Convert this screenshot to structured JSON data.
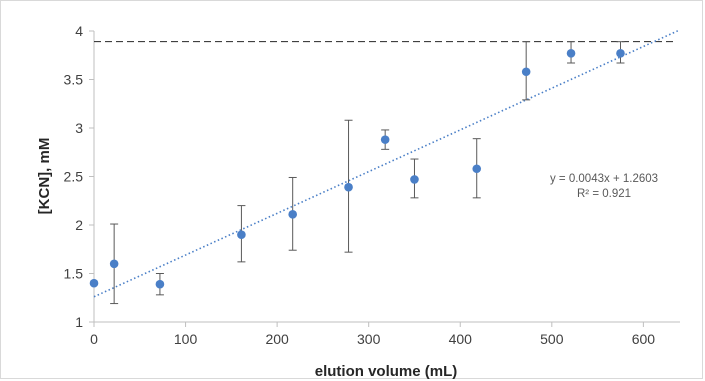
{
  "chart_data": {
    "type": "scatter",
    "title": "",
    "xlabel": "elution volume (mL)",
    "ylabel": "[KCN], mM",
    "xlim": [
      0,
      640
    ],
    "ylim": [
      1,
      4
    ],
    "x_ticks": [
      0,
      100,
      200,
      300,
      400,
      500,
      600
    ],
    "y_ticks": [
      1,
      1.5,
      2,
      2.5,
      3,
      3.5,
      4
    ],
    "x_tick_labels": [
      "0",
      "100",
      "200",
      "300",
      "400",
      "500",
      "600"
    ],
    "y_tick_labels": [
      "1",
      "1.5",
      "2",
      "2.5",
      "3",
      "3.5",
      "4"
    ],
    "grid": false,
    "legend": "none",
    "series": [
      {
        "points": [
          {
            "x": 0,
            "y": 1.4,
            "err_low": 1.4,
            "err_high": 1.4
          },
          {
            "x": 22,
            "y": 1.6,
            "err_low": 1.19,
            "err_high": 2.01
          },
          {
            "x": 72,
            "y": 1.39,
            "err_low": 1.28,
            "err_high": 1.5
          },
          {
            "x": 161,
            "y": 1.9,
            "err_low": 1.62,
            "err_high": 2.2
          },
          {
            "x": 217,
            "y": 2.11,
            "err_low": 1.74,
            "err_high": 2.49
          },
          {
            "x": 278,
            "y": 2.39,
            "err_low": 1.72,
            "err_high": 3.08
          },
          {
            "x": 318,
            "y": 2.88,
            "err_low": 2.78,
            "err_high": 2.98
          },
          {
            "x": 350,
            "y": 2.47,
            "err_low": 2.28,
            "err_high": 2.68
          },
          {
            "x": 418,
            "y": 2.58,
            "err_low": 2.28,
            "err_high": 2.89
          },
          {
            "x": 472,
            "y": 3.58,
            "err_low": 3.29,
            "err_high": 3.89
          },
          {
            "x": 521,
            "y": 3.77,
            "err_low": 3.67,
            "err_high": 3.89
          },
          {
            "x": 575,
            "y": 3.77,
            "err_low": 3.67,
            "err_high": 3.89
          }
        ]
      }
    ],
    "trendline": {
      "slope": 0.0043,
      "intercept": 1.2603,
      "x_range": [
        0,
        640
      ]
    },
    "reference_line": {
      "y": 3.89
    },
    "annotations": {
      "equation": "y = 0.0043x + 1.2603",
      "r_squared": "R² = 0.921"
    },
    "colors": {
      "marker": "#4a7fc7",
      "trendline": "#4a7fc7",
      "error_bar": "#595959",
      "reference_line": "#262626",
      "axis": "#bfbfbf"
    }
  }
}
